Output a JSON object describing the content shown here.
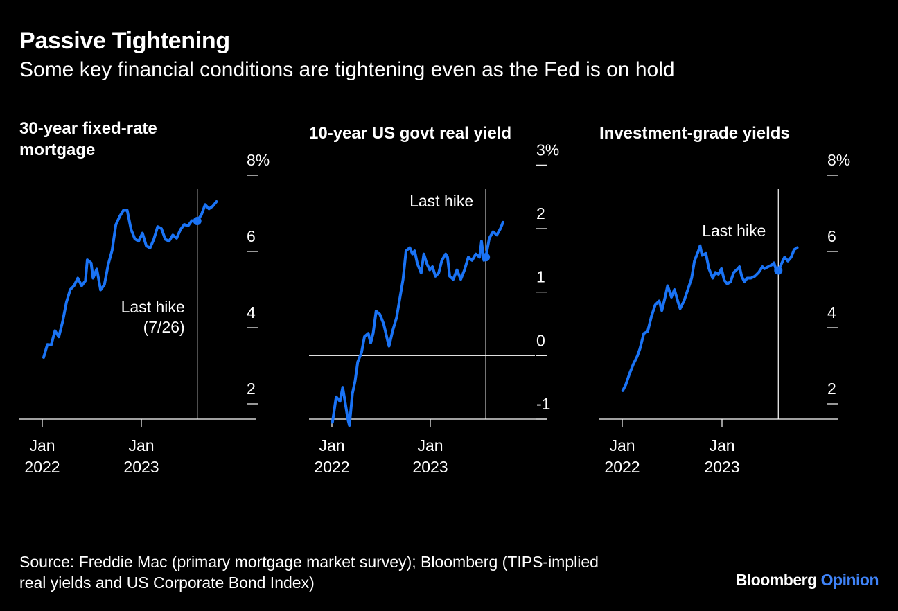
{
  "header": {
    "title": "Passive Tightening",
    "subtitle": "Some key financial conditions are tightening even as the Fed is on hold"
  },
  "footer": {
    "source_line1": "Source: Freddie Mac (primary mortgage market survey); Bloomberg (TIPS-implied",
    "source_line2": "real yields and US Corporate Bond Index)",
    "brand_part1": "Bloomberg",
    "brand_part2": "Opinion"
  },
  "colors": {
    "background": "#000000",
    "line": "#1a73f5",
    "text": "#ffffff",
    "brand_accent": "#3f83f8"
  },
  "chart_data": [
    {
      "type": "line",
      "title_lines": [
        "30-year fixed-rate",
        "mortgage"
      ],
      "ylim": [
        1.6,
        7.6
      ],
      "y_ticks": [
        {
          "value": 2,
          "label": "2"
        },
        {
          "value": 4,
          "label": "4"
        },
        {
          "value": 6,
          "label": "6"
        },
        {
          "value": 8,
          "label": "8%"
        }
      ],
      "x_ticks": [
        {
          "date": "2022-01",
          "label_lines": [
            "Jan",
            "2022"
          ]
        },
        {
          "date": "2023-01",
          "label_lines": [
            "Jan",
            "2023"
          ]
        }
      ],
      "xlim": [
        "2021-12",
        "2024-02"
      ],
      "zero_line": false,
      "event": {
        "date": "2023-07-26",
        "value": 6.8,
        "label_lines": [
          "Last hike",
          "(7/26)"
        ],
        "label_side": "left",
        "label_value": 4.4
      },
      "series": [
        {
          "values": [
            [
              "2022-01-06",
              3.22
            ],
            [
              "2022-01-20",
              3.56
            ],
            [
              "2022-02-03",
              3.55
            ],
            [
              "2022-02-17",
              3.92
            ],
            [
              "2022-03-03",
              3.76
            ],
            [
              "2022-03-17",
              4.16
            ],
            [
              "2022-03-31",
              4.67
            ],
            [
              "2022-04-14",
              5.0
            ],
            [
              "2022-04-28",
              5.1
            ],
            [
              "2022-05-12",
              5.3
            ],
            [
              "2022-05-26",
              5.1
            ],
            [
              "2022-06-09",
              5.23
            ],
            [
              "2022-06-16",
              5.78
            ],
            [
              "2022-06-30",
              5.7
            ],
            [
              "2022-07-07",
              5.3
            ],
            [
              "2022-07-21",
              5.54
            ],
            [
              "2022-08-04",
              4.99
            ],
            [
              "2022-08-18",
              5.13
            ],
            [
              "2022-09-01",
              5.66
            ],
            [
              "2022-09-15",
              6.02
            ],
            [
              "2022-09-29",
              6.7
            ],
            [
              "2022-10-13",
              6.92
            ],
            [
              "2022-10-27",
              7.08
            ],
            [
              "2022-11-10",
              7.08
            ],
            [
              "2022-11-24",
              6.58
            ],
            [
              "2022-12-08",
              6.33
            ],
            [
              "2022-12-22",
              6.27
            ],
            [
              "2023-01-05",
              6.48
            ],
            [
              "2023-01-19",
              6.15
            ],
            [
              "2023-02-02",
              6.09
            ],
            [
              "2023-02-16",
              6.32
            ],
            [
              "2023-03-02",
              6.65
            ],
            [
              "2023-03-16",
              6.6
            ],
            [
              "2023-03-30",
              6.32
            ],
            [
              "2023-04-13",
              6.27
            ],
            [
              "2023-04-27",
              6.43
            ],
            [
              "2023-05-11",
              6.35
            ],
            [
              "2023-05-25",
              6.57
            ],
            [
              "2023-06-08",
              6.71
            ],
            [
              "2023-06-22",
              6.67
            ],
            [
              "2023-07-06",
              6.81
            ],
            [
              "2023-07-20",
              6.78
            ],
            [
              "2023-07-26",
              6.81
            ],
            [
              "2023-08-10",
              6.96
            ],
            [
              "2023-08-24",
              7.23
            ],
            [
              "2023-09-07",
              7.12
            ],
            [
              "2023-09-21",
              7.19
            ],
            [
              "2023-10-05",
              7.31
            ]
          ]
        }
      ]
    },
    {
      "type": "line",
      "title_lines": [
        "10-year US govt real yield"
      ],
      "ylim": [
        -1.0,
        2.6
      ],
      "y_ticks": [
        {
          "value": -1,
          "label": "-1"
        },
        {
          "value": 0,
          "label": "0"
        },
        {
          "value": 1,
          "label": "1"
        },
        {
          "value": 2,
          "label": "2"
        },
        {
          "value": 3,
          "label": "3%"
        }
      ],
      "x_ticks": [
        {
          "date": "2022-01",
          "label_lines": [
            "Jan",
            "2022"
          ]
        },
        {
          "date": "2023-01",
          "label_lines": [
            "Jan",
            "2023"
          ]
        }
      ],
      "xlim": [
        "2021-12",
        "2024-02"
      ],
      "zero_line": true,
      "event": {
        "date": "2023-07-26",
        "value": 1.55,
        "label_lines": [
          "Last hike"
        ],
        "label_side": "left",
        "label_value": 2.35
      },
      "series": [
        {
          "values": [
            [
              "2022-01-03",
              -1.05
            ],
            [
              "2022-01-17",
              -0.65
            ],
            [
              "2022-01-31",
              -0.72
            ],
            [
              "2022-02-10",
              -0.5
            ],
            [
              "2022-02-21",
              -0.78
            ],
            [
              "2022-03-01",
              -1.0
            ],
            [
              "2022-03-07",
              -1.1
            ],
            [
              "2022-03-18",
              -0.6
            ],
            [
              "2022-03-28",
              -0.4
            ],
            [
              "2022-04-07",
              -0.1
            ],
            [
              "2022-04-21",
              0.05
            ],
            [
              "2022-05-02",
              0.3
            ],
            [
              "2022-05-16",
              0.35
            ],
            [
              "2022-05-25",
              0.2
            ],
            [
              "2022-06-03",
              0.35
            ],
            [
              "2022-06-14",
              0.7
            ],
            [
              "2022-06-28",
              0.65
            ],
            [
              "2022-07-12",
              0.5
            ],
            [
              "2022-07-26",
              0.25
            ],
            [
              "2022-08-01",
              0.15
            ],
            [
              "2022-08-15",
              0.4
            ],
            [
              "2022-08-29",
              0.6
            ],
            [
              "2022-09-12",
              0.95
            ],
            [
              "2022-09-22",
              1.2
            ],
            [
              "2022-10-03",
              1.65
            ],
            [
              "2022-10-17",
              1.7
            ],
            [
              "2022-10-27",
              1.6
            ],
            [
              "2022-11-04",
              1.65
            ],
            [
              "2022-11-14",
              1.45
            ],
            [
              "2022-11-28",
              1.3
            ],
            [
              "2022-12-08",
              1.6
            ],
            [
              "2022-12-19",
              1.45
            ],
            [
              "2022-12-30",
              1.35
            ],
            [
              "2023-01-09",
              1.4
            ],
            [
              "2023-01-20",
              1.25
            ],
            [
              "2023-02-01",
              1.3
            ],
            [
              "2023-02-13",
              1.5
            ],
            [
              "2023-02-27",
              1.6
            ],
            [
              "2023-03-06",
              1.55
            ],
            [
              "2023-03-14",
              1.25
            ],
            [
              "2023-03-27",
              1.2
            ],
            [
              "2023-04-10",
              1.35
            ],
            [
              "2023-04-24",
              1.2
            ],
            [
              "2023-05-08",
              1.35
            ],
            [
              "2023-05-22",
              1.55
            ],
            [
              "2023-06-05",
              1.5
            ],
            [
              "2023-06-19",
              1.6
            ],
            [
              "2023-07-03",
              1.55
            ],
            [
              "2023-07-10",
              1.8
            ],
            [
              "2023-07-19",
              1.5
            ],
            [
              "2023-07-26",
              1.55
            ],
            [
              "2023-08-08",
              1.85
            ],
            [
              "2023-08-22",
              1.95
            ],
            [
              "2023-09-05",
              1.9
            ],
            [
              "2023-09-18",
              2.0
            ],
            [
              "2023-09-28",
              2.1
            ]
          ]
        }
      ]
    },
    {
      "type": "line",
      "title_lines": [
        "Investment-grade yields"
      ],
      "ylim": [
        1.6,
        7.6
      ],
      "y_ticks": [
        {
          "value": 2,
          "label": "2"
        },
        {
          "value": 4,
          "label": "4"
        },
        {
          "value": 6,
          "label": "6"
        },
        {
          "value": 8,
          "label": "8%"
        }
      ],
      "x_ticks": [
        {
          "date": "2022-01",
          "label_lines": [
            "Jan",
            "2022"
          ]
        },
        {
          "date": "2023-01",
          "label_lines": [
            "Jan",
            "2023"
          ]
        }
      ],
      "xlim": [
        "2021-12",
        "2024-02"
      ],
      "zero_line": false,
      "event": {
        "date": "2023-07-26",
        "value": 5.5,
        "label_lines": [
          "Last hike"
        ],
        "label_side": "left",
        "label_value": 6.4
      },
      "series": [
        {
          "values": [
            [
              "2022-01-03",
              2.35
            ],
            [
              "2022-01-14",
              2.5
            ],
            [
              "2022-01-28",
              2.8
            ],
            [
              "2022-02-11",
              3.05
            ],
            [
              "2022-02-25",
              3.25
            ],
            [
              "2022-03-07",
              3.45
            ],
            [
              "2022-03-21",
              3.85
            ],
            [
              "2022-04-04",
              3.9
            ],
            [
              "2022-04-18",
              4.3
            ],
            [
              "2022-05-02",
              4.6
            ],
            [
              "2022-05-16",
              4.7
            ],
            [
              "2022-05-26",
              4.45
            ],
            [
              "2022-06-07",
              4.8
            ],
            [
              "2022-06-16",
              5.1
            ],
            [
              "2022-06-30",
              4.8
            ],
            [
              "2022-07-11",
              5.0
            ],
            [
              "2022-07-25",
              4.65
            ],
            [
              "2022-08-01",
              4.5
            ],
            [
              "2022-08-15",
              4.7
            ],
            [
              "2022-08-29",
              5.0
            ],
            [
              "2022-09-12",
              5.3
            ],
            [
              "2022-09-22",
              5.75
            ],
            [
              "2022-10-06",
              6.0
            ],
            [
              "2022-10-13",
              6.15
            ],
            [
              "2022-10-20",
              5.9
            ],
            [
              "2022-11-03",
              5.95
            ],
            [
              "2022-11-14",
              5.55
            ],
            [
              "2022-11-28",
              5.3
            ],
            [
              "2022-12-08",
              5.45
            ],
            [
              "2022-12-19",
              5.4
            ],
            [
              "2022-12-30",
              5.55
            ],
            [
              "2023-01-09",
              5.25
            ],
            [
              "2023-01-20",
              5.15
            ],
            [
              "2023-02-01",
              5.2
            ],
            [
              "2023-02-13",
              5.45
            ],
            [
              "2023-02-28",
              5.55
            ],
            [
              "2023-03-06",
              5.6
            ],
            [
              "2023-03-14",
              5.35
            ],
            [
              "2023-03-24",
              5.2
            ],
            [
              "2023-04-03",
              5.3
            ],
            [
              "2023-04-17",
              5.3
            ],
            [
              "2023-05-01",
              5.35
            ],
            [
              "2023-05-15",
              5.45
            ],
            [
              "2023-05-29",
              5.6
            ],
            [
              "2023-06-05",
              5.55
            ],
            [
              "2023-06-19",
              5.6
            ],
            [
              "2023-07-03",
              5.65
            ],
            [
              "2023-07-10",
              5.7
            ],
            [
              "2023-07-19",
              5.5
            ],
            [
              "2023-07-26",
              5.5
            ],
            [
              "2023-08-08",
              5.7
            ],
            [
              "2023-08-18",
              5.85
            ],
            [
              "2023-08-30",
              5.75
            ],
            [
              "2023-09-11",
              5.85
            ],
            [
              "2023-09-22",
              6.05
            ],
            [
              "2023-10-03",
              6.1
            ]
          ]
        }
      ]
    }
  ]
}
